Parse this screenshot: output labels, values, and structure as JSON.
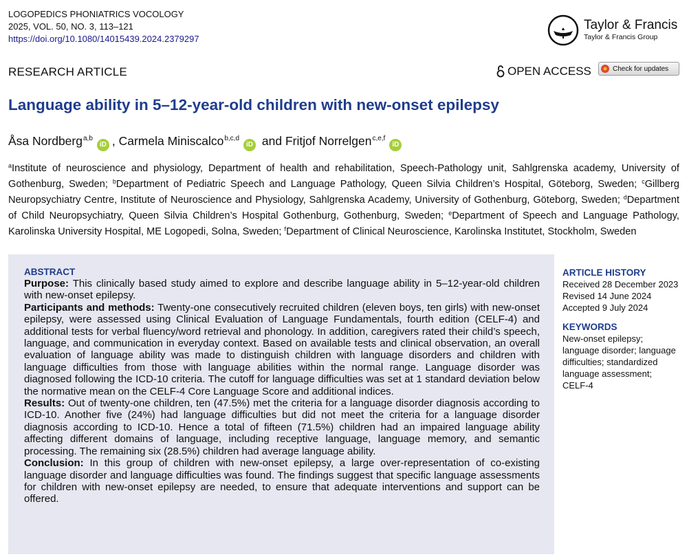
{
  "header": {
    "journal": "LOGOPEDICS PHONIATRICS VOCOLOGY",
    "issue": "2025, VOL. 50, NO. 3, 113–121",
    "doi": "https://doi.org/10.1080/14015439.2024.2379297",
    "publisher": "Taylor & Francis",
    "publisher_group": "Taylor & Francis Group"
  },
  "article_type": "RESEARCH ARTICLE",
  "open_access": "OPEN ACCESS",
  "check_updates": "Check for updates",
  "title": "Language ability in 5–12-year-old children with new-onset epilepsy",
  "orcid_icon": "iD",
  "authors": [
    {
      "name": "Åsa Nordberg",
      "affiliations": "a,b",
      "separator": ","
    },
    {
      "name": "Carmela Miniscalco",
      "affiliations": "b,c,d",
      "separator": "and"
    },
    {
      "name": "Fritjof Norrelgen",
      "affiliations": "c,e,f"
    }
  ],
  "affiliations": [
    {
      "label": "a",
      "text": "Institute of neuroscience and physiology, Department of health and rehabilitation, Speech-Pathology unit, Sahlgrenska academy, University of Gothenburg, Sweden;"
    },
    {
      "label": "b",
      "text": "Department of Pediatric Speech and Language Pathology, Queen Silvia Children’s Hospital, Göteborg, Sweden;"
    },
    {
      "label": "c",
      "text": "Gillberg Neuropsychiatry Centre, Institute of Neuroscience and Physiology, Sahlgrenska Academy, University of Gothenburg, Göteborg, Sweden;"
    },
    {
      "label": "d",
      "text": "Department of Child Neuropsychiatry, Queen Silvia Children’s Hospital Gothenburg, Gothenburg, Sweden;"
    },
    {
      "label": "e",
      "text": "Department of Speech and Language Pathology, Karolinska University Hospital, ME Logopedi, Solna, Sweden;"
    },
    {
      "label": "f",
      "text": "Department of Clinical Neuroscience, Karolinska Institutet, Stockholm, Sweden"
    }
  ],
  "abstract": {
    "heading": "ABSTRACT",
    "sections": [
      {
        "label": "Purpose:",
        "text": "This clinically based study aimed to explore and describe language ability in 5–12-year-old children with new-onset epilepsy."
      },
      {
        "label": "Participants and methods:",
        "text": "Twenty-one consecutively recruited children (eleven boys, ten girls) with new-onset epilepsy, were assessed using Clinical Evaluation of Language Fundamentals, fourth edition (CELF-4) and additional tests for verbal fluency/word retrieval and phonology. In addition, caregivers rated their child’s speech, language, and communication in everyday context. Based on available tests and clinical observation, an overall evaluation of language ability was made to distinguish children with language disorders and children with language difficulties from those with language abilities within the normal range. Language disorder was diagnosed following the ICD-10 criteria. The cutoff for language difficulties was set at 1 standard deviation below the normative mean on the CELF-4 Core Language Score and additional indices."
      },
      {
        "label": "Results:",
        "text": "Out of twenty-one children, ten (47.5%) met the criteria for a language disorder diagnosis according to ICD-10. Another five (24%) had language difficulties but did not meet the criteria for a language disorder diagnosis according to ICD-10. Hence a total of fifteen (71.5%) children had an impaired language ability affecting different domains of language, including receptive language, language memory, and semantic processing. The remaining six (28.5%) children had average language ability."
      },
      {
        "label": "Conclusion:",
        "text": "In this group of children with new-onset epilepsy, a large over-representation of co-existing language disorder and language difficulties was found. The findings suggest that specific language assessments for children with new-onset epilepsy are needed, to ensure that adequate interventions and support can be offered."
      }
    ]
  },
  "article_history": {
    "heading": "ARTICLE HISTORY",
    "items": [
      "Received 28 December 2023",
      "Revised 14 June 2024",
      "Accepted 9 July 2024"
    ]
  },
  "keywords": {
    "heading": "KEYWORDS",
    "text": "New-onset epilepsy; language disorder; language difficulties; standardized language assessment; CELF-4"
  }
}
